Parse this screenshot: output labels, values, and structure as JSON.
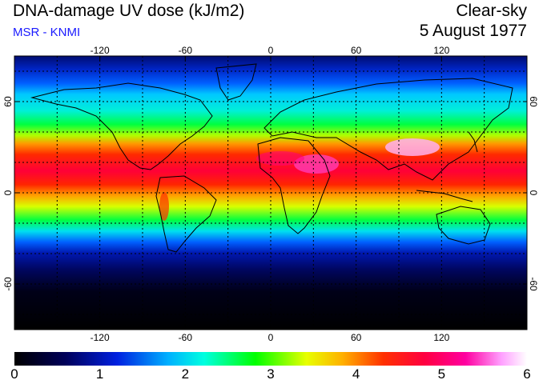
{
  "header": {
    "title": "DNA-damage UV dose (kJ/m2)",
    "source": "MSR - KNMI",
    "product": "Clear-sky",
    "date": "5 August 1977"
  },
  "map": {
    "projection": "equirectangular",
    "lon_ticks": [
      -120,
      -60,
      0,
      60,
      120
    ],
    "lat_ticks": [
      60,
      0,
      -60
    ],
    "grid_lon_step": 30,
    "grid_lat_step": 20,
    "gridlines": "dotted"
  },
  "colorbar": {
    "min": 0,
    "max": 6,
    "tick_labels": [
      "0",
      "1",
      "2",
      "3",
      "4",
      "5",
      "6"
    ],
    "colors": [
      "#000000",
      "#000080",
      "#0050ff",
      "#00ffff",
      "#00ff00",
      "#ffff00",
      "#ff8000",
      "#ff0000",
      "#ff0096",
      "#ffffff"
    ]
  }
}
